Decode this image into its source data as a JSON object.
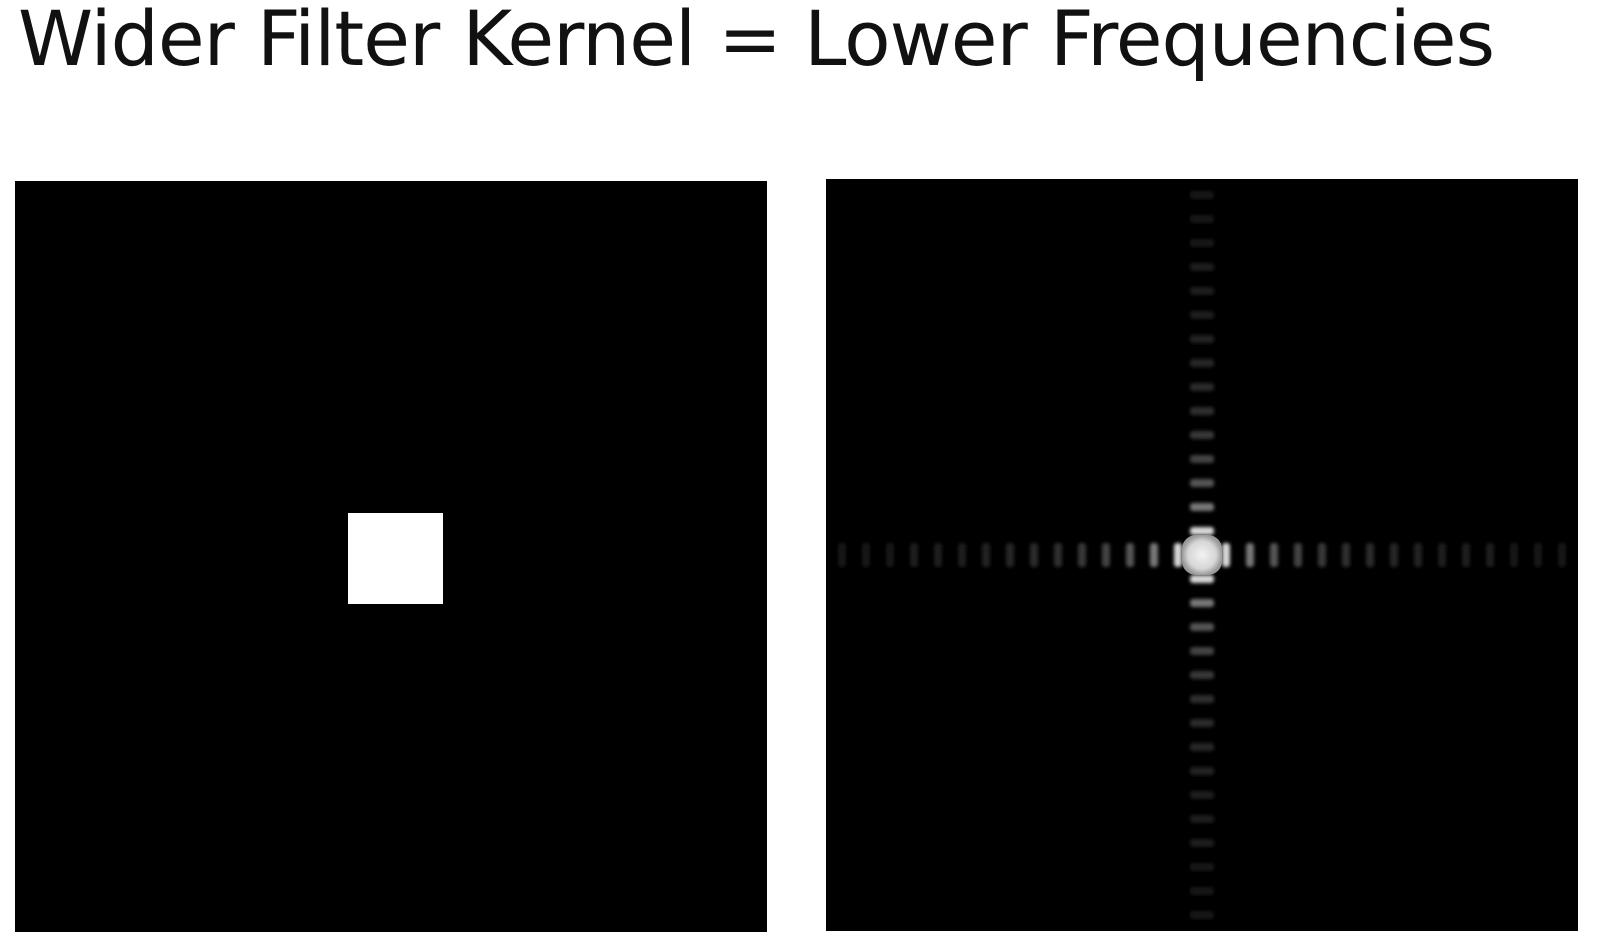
{
  "slide": {
    "title": "Wider Filter Kernel = Lower Frequencies"
  },
  "colors": {
    "background": "#ffffff",
    "panel": "#000000",
    "kernel": "#ffffff",
    "title_text": "#111111"
  }
}
